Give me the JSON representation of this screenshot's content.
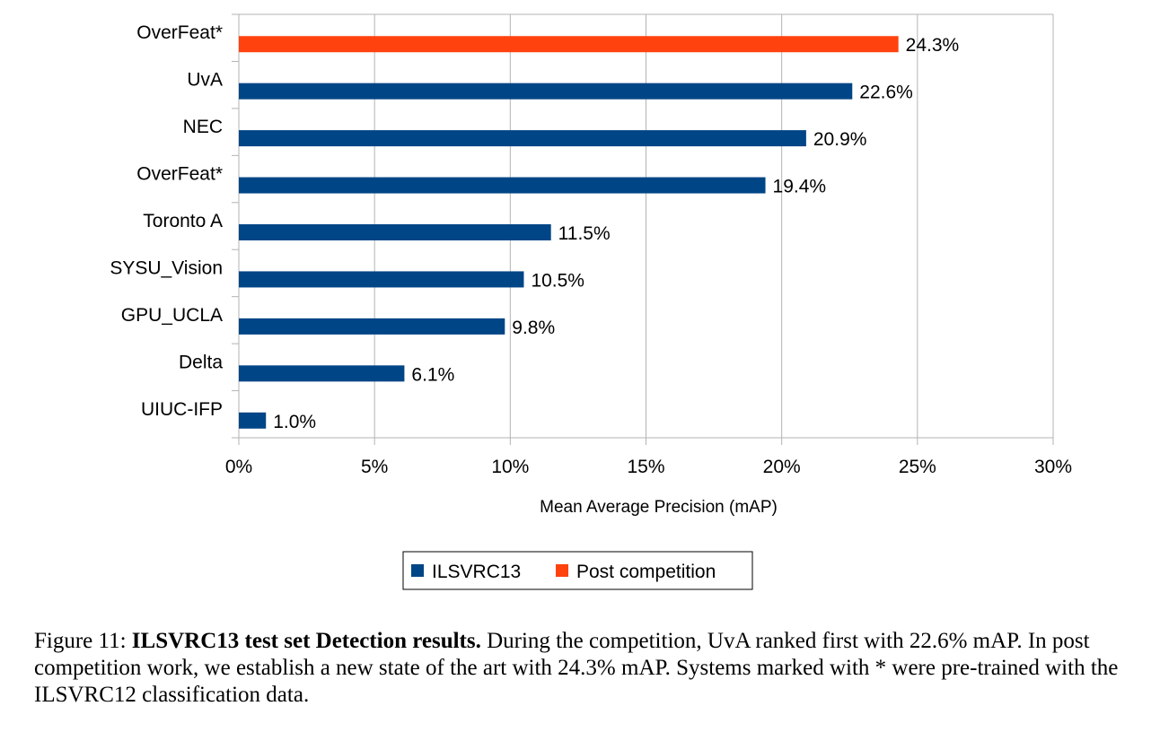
{
  "chart_data": {
    "type": "bar",
    "orientation": "horizontal",
    "categories": [
      "OverFeat*",
      "UvA",
      "NEC",
      "OverFeat*",
      "Toronto A",
      "SYSU_Vision",
      "GPU_UCLA",
      "Delta",
      "UIUC-IFP"
    ],
    "values": [
      24.3,
      22.6,
      20.9,
      19.4,
      11.5,
      10.5,
      9.8,
      6.1,
      1.0
    ],
    "value_labels": [
      "24.3%",
      "22.6%",
      "20.9%",
      "19.4%",
      "11.5%",
      "10.5%",
      "9.8%",
      "6.1%",
      "1.0%"
    ],
    "bar_series": [
      "Post competition",
      "ILSVRC13",
      "ILSVRC13",
      "ILSVRC13",
      "ILSVRC13",
      "ILSVRC13",
      "ILSVRC13",
      "ILSVRC13",
      "ILSVRC13"
    ],
    "series": [
      {
        "name": "ILSVRC13",
        "color": "#004586"
      },
      {
        "name": "Post competition",
        "color": "#ff420e"
      }
    ],
    "xlabel": "Mean Average Precision (mAP)",
    "ylabel": "",
    "xlim": [
      0,
      30
    ],
    "xticks": [
      0,
      5,
      10,
      15,
      20,
      25,
      30
    ],
    "xtick_labels": [
      "0%",
      "5%",
      "10%",
      "15%",
      "20%",
      "25%",
      "30%"
    ],
    "grid": "vertical",
    "legend_position": "bottom"
  },
  "caption": {
    "label": "Figure 11:",
    "title": "ILSVRC13 test set Detection results.",
    "text": "During the competition, UvA ranked first with 22.6% mAP. In post competition work, we establish a new state of the art with 24.3% mAP. Systems marked with * were pre-trained with the ILSVRC12 classification data."
  }
}
